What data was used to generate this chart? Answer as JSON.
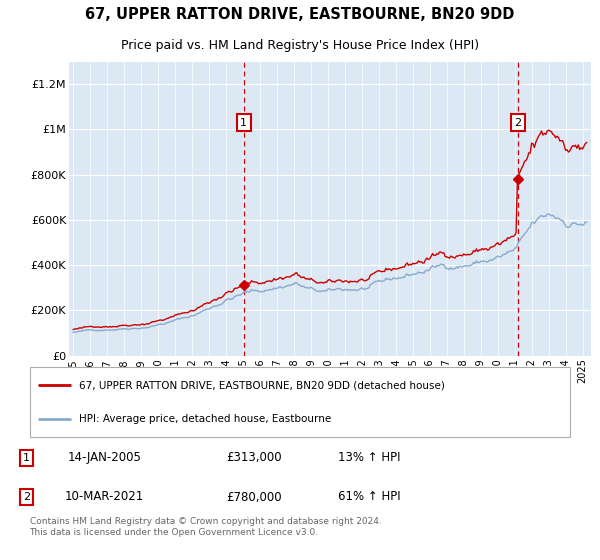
{
  "title": "67, UPPER RATTON DRIVE, EASTBOURNE, BN20 9DD",
  "subtitle": "Price paid vs. HM Land Registry's House Price Index (HPI)",
  "legend_line1": "67, UPPER RATTON DRIVE, EASTBOURNE, BN20 9DD (detached house)",
  "legend_line2": "HPI: Average price, detached house, Eastbourne",
  "footnote": "Contains HM Land Registry data © Crown copyright and database right 2024.\nThis data is licensed under the Open Government Licence v3.0.",
  "marker1_date": "14-JAN-2005",
  "marker1_price": "£313,000",
  "marker1_hpi": "13% ↑ HPI",
  "marker2_date": "10-MAR-2021",
  "marker2_price": "£780,000",
  "marker2_hpi": "61% ↑ HPI",
  "line_color_red": "#cc0000",
  "line_color_blue": "#88aacc",
  "vline_color": "#cc0000",
  "plot_bg_color": "#dce9f5",
  "marker1_x": 2005.04,
  "marker2_x": 2021.19,
  "marker1_y": 313000,
  "marker2_y": 780000,
  "ylim": [
    0,
    1300000
  ],
  "yticks": [
    0,
    200000,
    400000,
    600000,
    800000,
    1000000,
    1200000
  ],
  "xlim_start": 1994.75,
  "xlim_end": 2025.5
}
